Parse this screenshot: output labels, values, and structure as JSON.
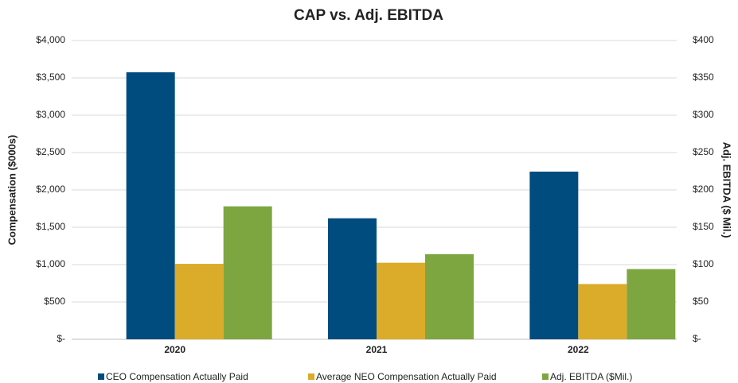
{
  "chart_data": {
    "type": "bar",
    "title": "CAP vs. Adj. EBITDA",
    "ylabel": "Compensation ($000s)",
    "y2label": "Adj. EBITDA ($ Mil.)",
    "categories": [
      "2020",
      "2021",
      "2022"
    ],
    "series": [
      {
        "name": "CEO Compensation Actually Paid",
        "color": "#004c7f",
        "values": [
          3575,
          1620,
          2245
        ]
      },
      {
        "name": "Average NEO Compensation Actually Paid",
        "color": "#dbab2a",
        "values": [
          1010,
          1025,
          740
        ]
      },
      {
        "name": "Adj. EBITDA ($Mil.)",
        "color": "#7ea640",
        "axis": "y2",
        "values": [
          178,
          114,
          94
        ]
      }
    ],
    "ylim": [
      0,
      4000
    ],
    "yticks": [
      {
        "value": 0,
        "label": "$-"
      },
      {
        "value": 500,
        "label": "$500"
      },
      {
        "value": 1000,
        "label": "$1,000"
      },
      {
        "value": 1500,
        "label": "$1,500"
      },
      {
        "value": 2000,
        "label": "$2,000"
      },
      {
        "value": 2500,
        "label": "$2,500"
      },
      {
        "value": 3000,
        "label": "$3,000"
      },
      {
        "value": 3500,
        "label": "$3,500"
      },
      {
        "value": 4000,
        "label": "$4,000"
      }
    ],
    "y2lim": [
      0,
      400
    ],
    "y2ticks": [
      {
        "value": 0,
        "label": "$-"
      },
      {
        "value": 50,
        "label": "$50"
      },
      {
        "value": 100,
        "label": "$100"
      },
      {
        "value": 150,
        "label": "$150"
      },
      {
        "value": 200,
        "label": "$200"
      },
      {
        "value": 250,
        "label": "$250"
      },
      {
        "value": 300,
        "label": "$300"
      },
      {
        "value": 350,
        "label": "$350"
      },
      {
        "value": 400,
        "label": "$400"
      }
    ],
    "grid": true,
    "legend": "bottom"
  }
}
